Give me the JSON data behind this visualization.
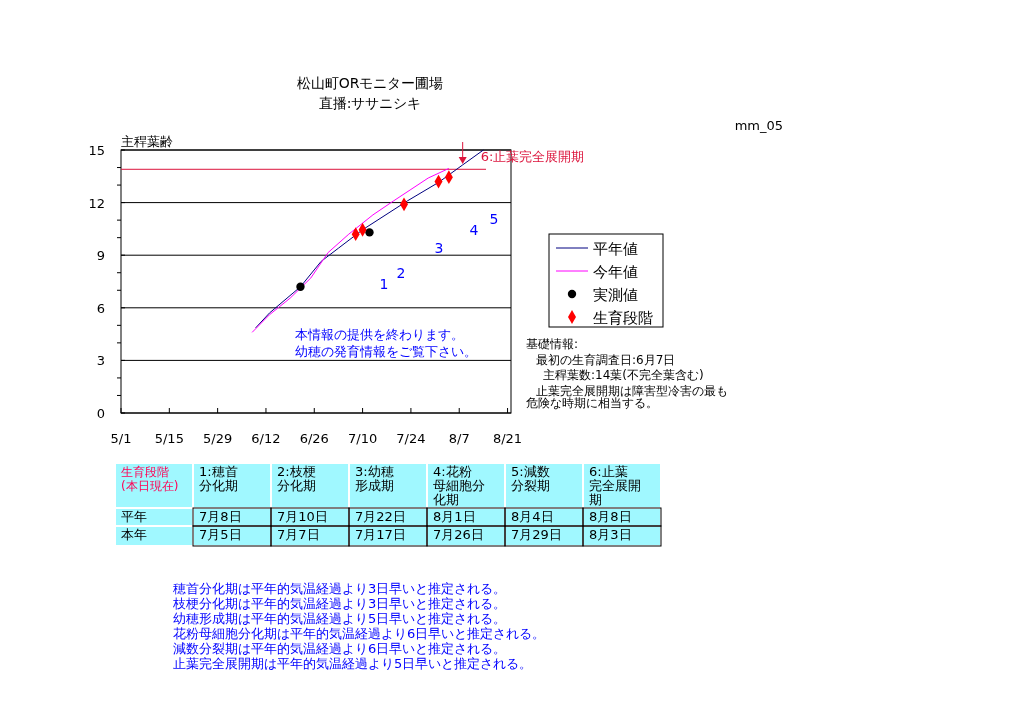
{
  "chart_data": {
    "type": "line",
    "title": "松山町ORモニター圃場",
    "subtitle": "直播:ササニシキ",
    "ylabel": "主稈葉齢",
    "xlim": [
      "--05-01",
      "--08-22"
    ],
    "xticks": [
      {
        "value": "--05-01",
        "label": "5/1"
      },
      {
        "value": "--05-15",
        "label": "5/15"
      },
      {
        "value": "--05-29",
        "label": "5/29"
      },
      {
        "value": "--06-12",
        "label": "6/12"
      },
      {
        "value": "--06-26",
        "label": "6/26"
      },
      {
        "value": "--07-10",
        "label": "7/10"
      },
      {
        "value": "--07-24",
        "label": "7/24"
      },
      {
        "value": "--08-07",
        "label": "8/7"
      },
      {
        "value": "--08-21",
        "label": "8/21"
      }
    ],
    "ylim": [
      0,
      15
    ],
    "yticks": [
      0,
      {
        "value": 1,
        "label": null
      },
      {
        "value": 2,
        "label": null
      },
      3,
      {
        "value": 4,
        "label": null
      },
      {
        "value": 5,
        "label": null
      },
      6,
      {
        "value": 7,
        "label": null
      },
      {
        "value": 8,
        "label": null
      },
      9,
      {
        "value": 10,
        "label": null
      },
      {
        "value": 11,
        "label": null
      },
      12,
      {
        "value": 13,
        "label": null
      },
      {
        "value": 14,
        "label": null
      },
      15
    ],
    "grid": "y",
    "legend": "right",
    "series": [
      {
        "name": "平年値",
        "color": "#000080",
        "x": [
          "--06-09",
          "--06-13",
          "--06-22",
          "--06-28",
          "--07-03",
          "--07-10",
          "--07-23",
          "--08-01",
          "--08-08",
          "--08-14"
        ],
        "values": [
          4.85,
          5.7,
          7.2,
          8.65,
          9.4,
          10.45,
          12.1,
          13.15,
          14.15,
          15.0
        ]
      },
      {
        "name": "今年値",
        "color": "#ff00ff",
        "x": [
          "--06-08",
          "--06-13",
          "--06-19",
          "--06-25",
          "--06-30",
          "--07-06",
          "--07-13",
          "--07-19",
          "--07-24",
          "--07-29",
          "--08-04"
        ],
        "values": [
          4.6,
          5.6,
          6.55,
          7.7,
          9.15,
          10.2,
          11.3,
          12.1,
          12.75,
          13.4,
          13.95
        ]
      },
      {
        "name": "実測値",
        "type": "scatter",
        "marker": "circle",
        "color": "#000000",
        "x": [
          "--06-22",
          "--07-12"
        ],
        "values": [
          7.2,
          10.3
        ]
      },
      {
        "name": "生育段階",
        "type": "scatter",
        "marker": "diamond",
        "color": "#ff0000",
        "x": [
          "--07-08",
          "--07-10",
          "--07-22",
          "--08-01",
          "--08-04"
        ],
        "values": [
          10.2,
          10.45,
          11.9,
          13.2,
          13.45
        ]
      }
    ],
    "ref_lines": [
      {
        "axis": "y",
        "value": 13.9,
        "color": "#dc143c"
      }
    ],
    "annotations": [
      "mm_05",
      "本情報の提供を終わります。",
      "幼穂の発育情報をご覧下さい。",
      "基礎情報:",
      "最初の生育調査日:6月7日",
      "主稈葉数:14葉(不完全葉含む)",
      "止葉完全展開期は障害型冷害の最も",
      "危険な時期に相当する。",
      "生育段階(本日現在)",
      "1:穂首分化期",
      "2:枝梗分化期",
      "3:幼穂形成期",
      "4:花粉母細胞分化期",
      "5:減数分裂期",
      "6:止葉完全展開期",
      "平年",
      "7月8日",
      "7月10日",
      "7月22日",
      "8月1日",
      "8月4日",
      "8月8日",
      "本年",
      "7月5日",
      "7月7日",
      "7月17日",
      "7月26日",
      "7月29日",
      "8月3日",
      "穂首分化期は平年的気温経過より3日早いと推定される。",
      "枝梗分化期は平年的気温経過より3日早いと推定される。",
      "幼穂形成期は平年的気温経過より5日早いと推定される。",
      "花粉母細胞分化期は平年的気温経過より6日早いと推定される。",
      "減数分裂期は平年的気温経過より6日早いと推定される。",
      "止葉完全展開期は平年的気温経過より5日早いと推定される。",
      {
        "text": "6:止葉完全展開期",
        "x": "--08-08",
        "y": 14.2
      },
      "1",
      "2",
      "3",
      "4",
      "5"
    ]
  }
}
